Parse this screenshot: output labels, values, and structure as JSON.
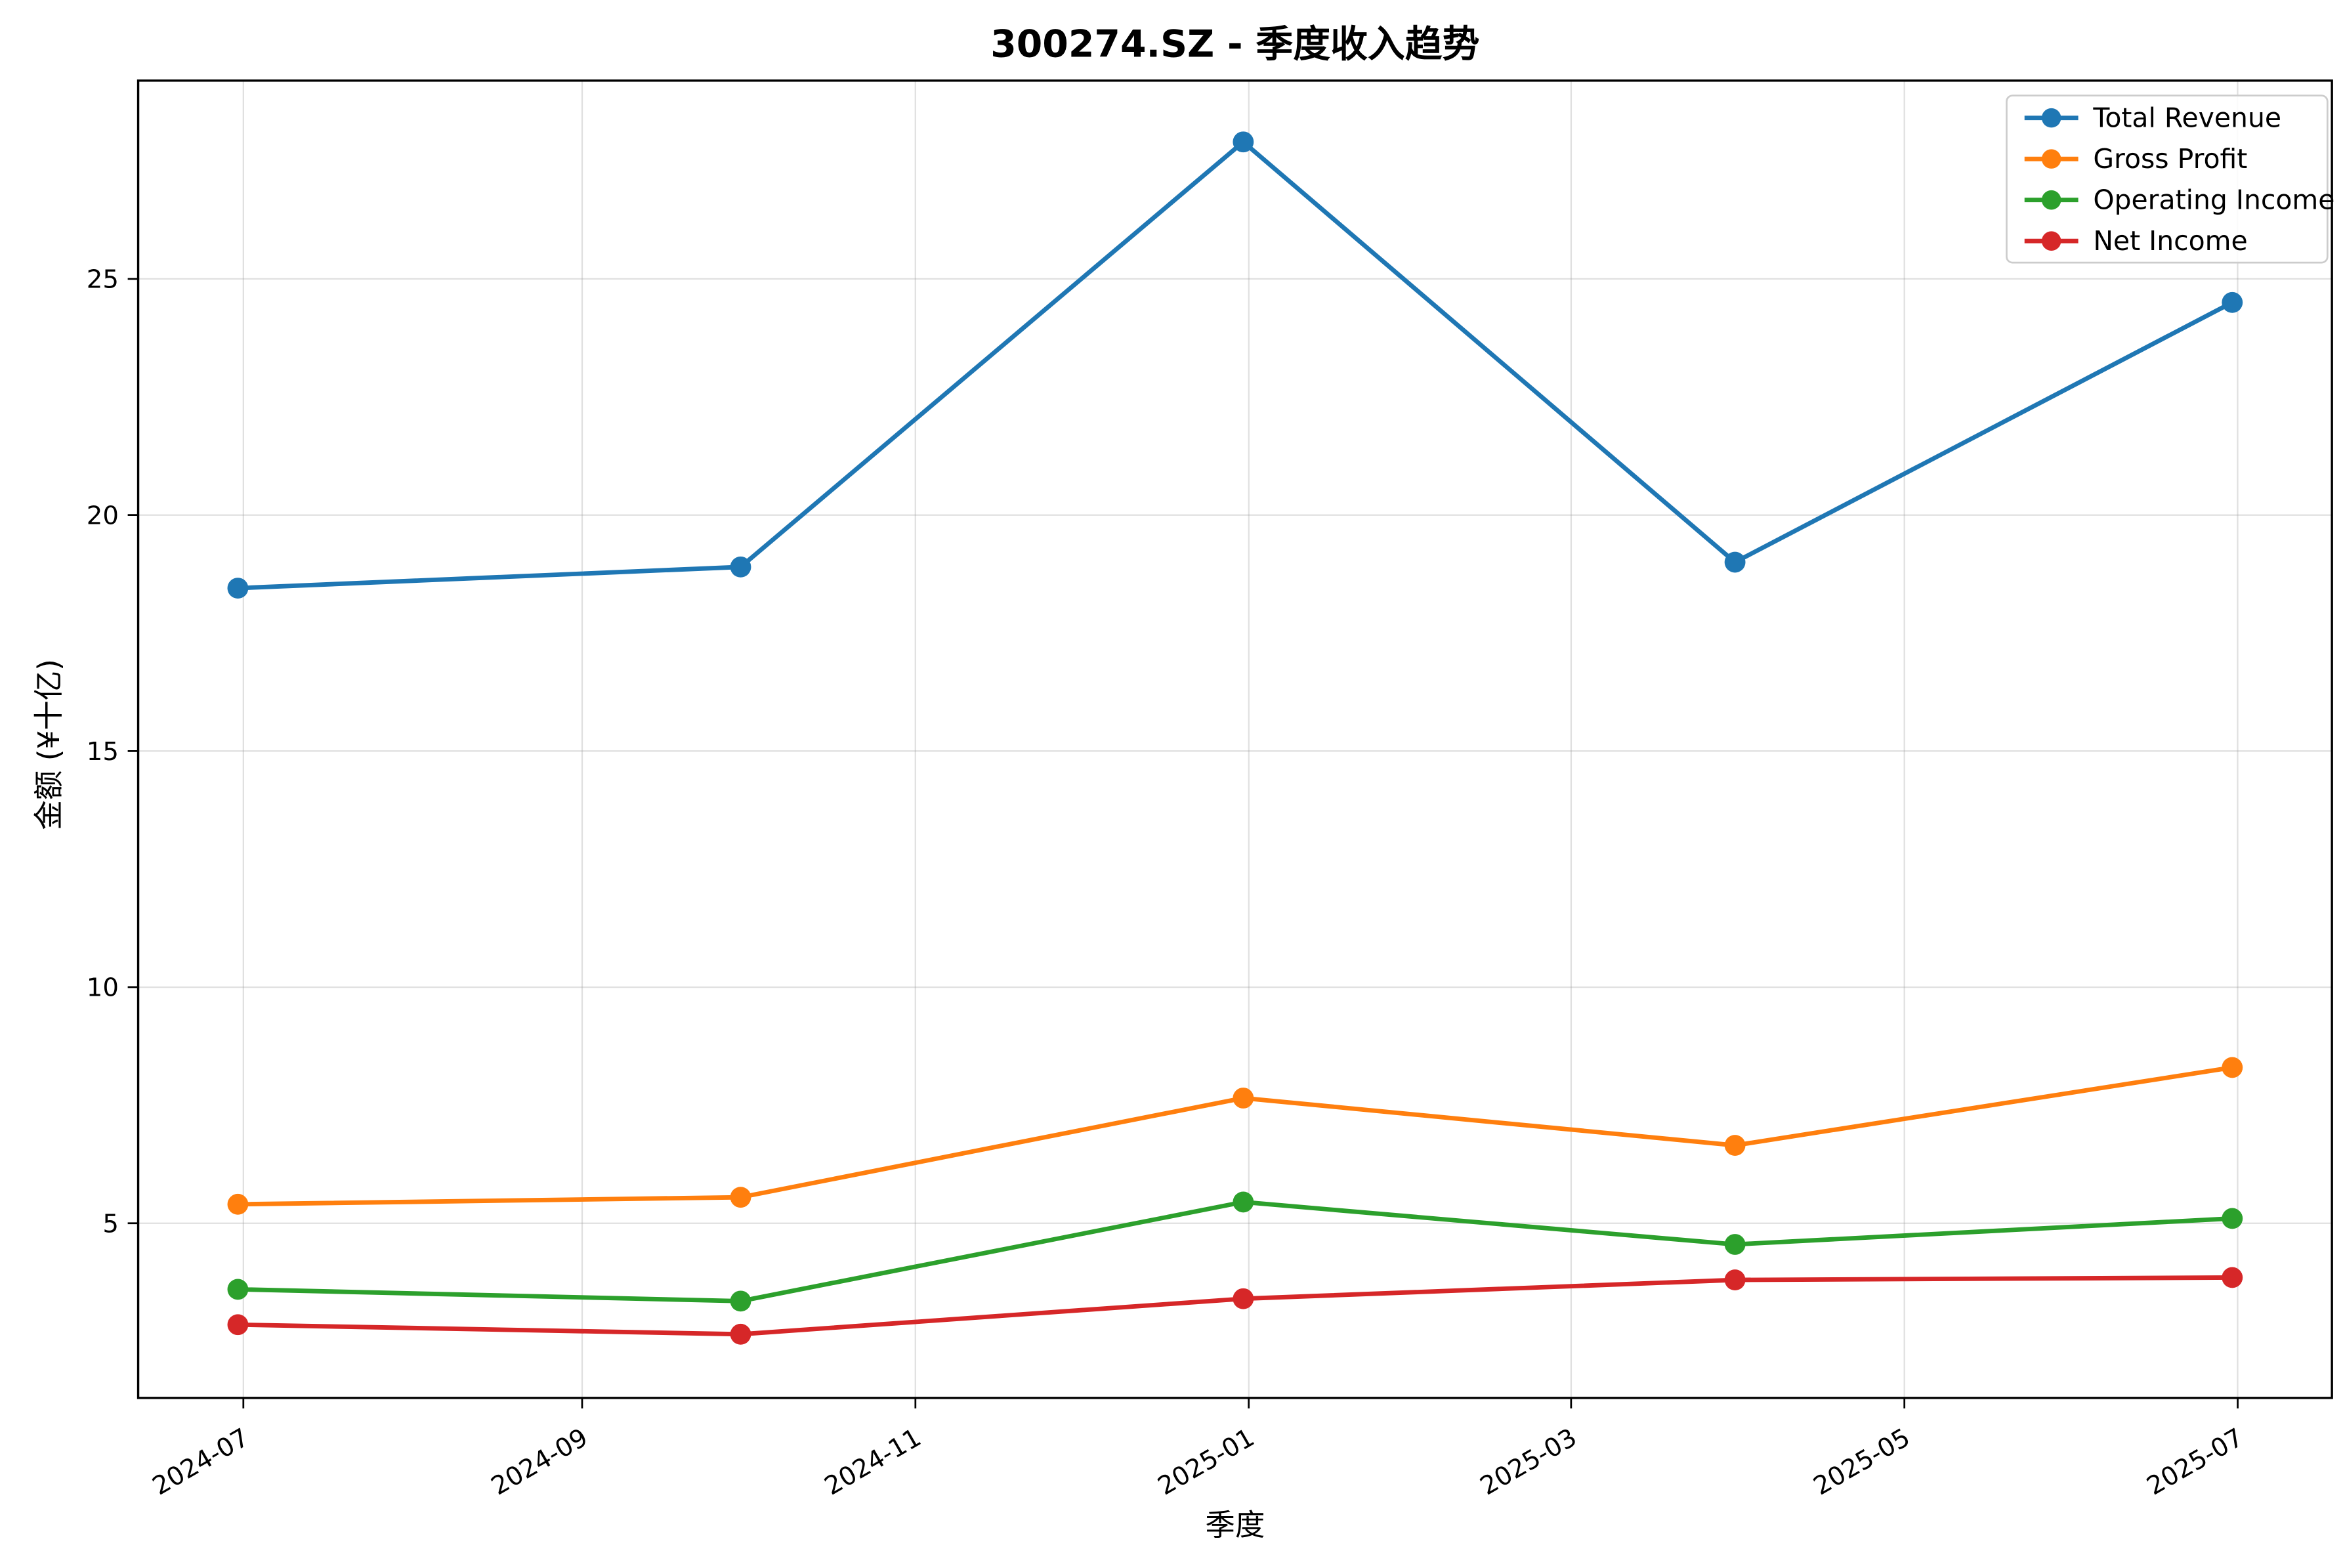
{
  "chart_data": {
    "type": "line",
    "title": "300274.SZ - 季度收入趋势",
    "xlabel": "季度",
    "ylabel": "金额 (¥十亿)",
    "x": [
      "2024-06-30",
      "2024-09-30",
      "2024-12-31",
      "2025-03-31",
      "2025-06-30"
    ],
    "x_ticks": [
      {
        "date": "2024-07-01",
        "label": "2024-07"
      },
      {
        "date": "2024-09-01",
        "label": "2024-09"
      },
      {
        "date": "2024-11-01",
        "label": "2024-11"
      },
      {
        "date": "2025-01-01",
        "label": "2025-01"
      },
      {
        "date": "2025-03-01",
        "label": "2025-03"
      },
      {
        "date": "2025-05-01",
        "label": "2025-05"
      },
      {
        "date": "2025-07-01",
        "label": "2025-07"
      }
    ],
    "y_ticks": [
      5,
      10,
      15,
      20,
      25
    ],
    "ylim": [
      1.3,
      29.2
    ],
    "grid": true,
    "legend_position": "upper right",
    "series": [
      {
        "name": "Total Revenue",
        "color": "#1f77b4",
        "values": [
          18.45,
          18.9,
          27.9,
          19.0,
          24.5
        ]
      },
      {
        "name": "Gross Profit",
        "color": "#ff7f0e",
        "values": [
          5.4,
          5.55,
          7.65,
          6.65,
          8.3
        ]
      },
      {
        "name": "Operating Income",
        "color": "#2ca02c",
        "values": [
          3.6,
          3.35,
          5.45,
          4.55,
          5.1
        ]
      },
      {
        "name": "Net Income",
        "color": "#d62728",
        "values": [
          2.85,
          2.65,
          3.4,
          3.8,
          3.85
        ]
      }
    ]
  }
}
